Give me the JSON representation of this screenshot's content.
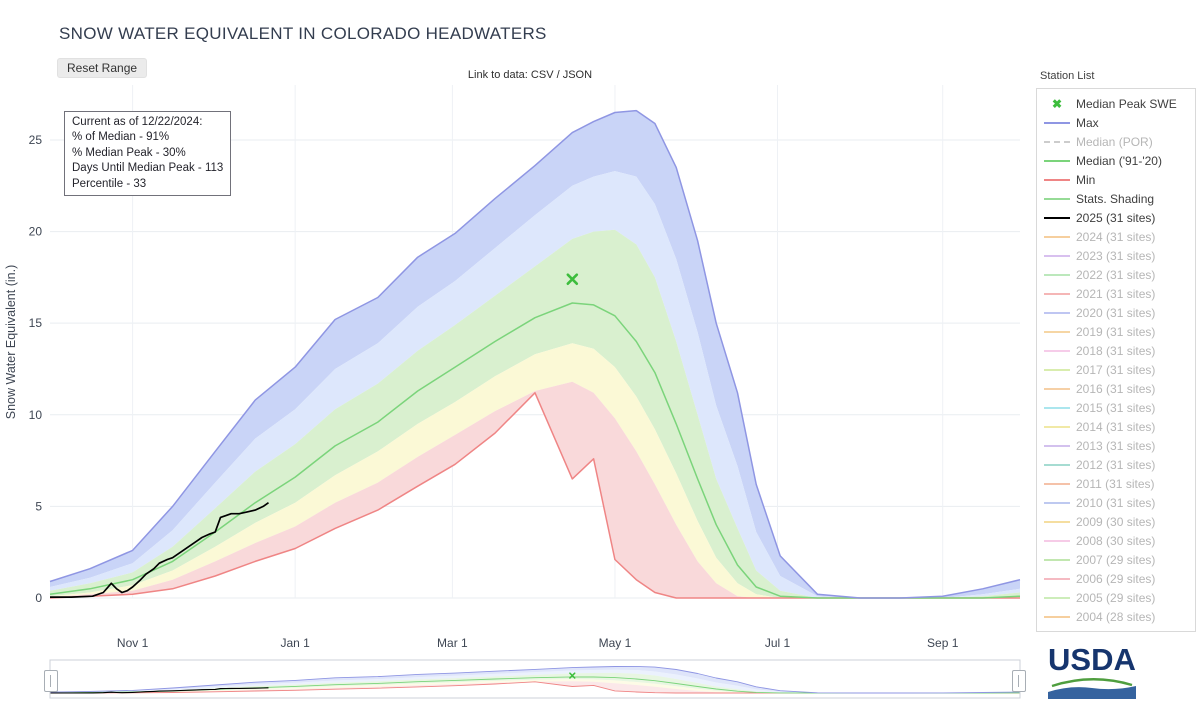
{
  "header": {
    "title": "SNOW WATER EQUIVALENT IN COLORADO HEADWATERS",
    "reset_range_label": "Reset Range",
    "data_link_prefix": "Link to data:",
    "csv_label": "CSV",
    "link_separator": " / ",
    "json_label": "JSON",
    "station_list_label": "Station List"
  },
  "annotation": {
    "lines": [
      "Current as of 12/22/2024:",
      "% of Median - 91%",
      "% Median Peak - 30%",
      "Days Until Median Peak - 113",
      "Percentile - 33"
    ]
  },
  "legend": {
    "items": [
      {
        "label": "Median Peak SWE",
        "style": "marker-x",
        "color": "#3dbd3d",
        "active": true
      },
      {
        "label": "Max",
        "style": "line",
        "color": "#8f96e3",
        "active": true
      },
      {
        "label": "Median (POR)",
        "style": "dash",
        "color": "#cccccc",
        "active": false
      },
      {
        "label": "Median ('91-'20)",
        "style": "line",
        "color": "#7bd47b",
        "active": true
      },
      {
        "label": "Min",
        "style": "line",
        "color": "#ef8585",
        "active": true
      },
      {
        "label": "Stats. Shading",
        "style": "line",
        "color": "#96db96",
        "active": true
      },
      {
        "label": "2025 (31 sites)",
        "style": "line",
        "color": "#000000",
        "active": true
      },
      {
        "label": "2024 (31 sites)",
        "style": "line",
        "color": "#f6cf9e",
        "active": false
      },
      {
        "label": "2023 (31 sites)",
        "style": "line",
        "color": "#d8c0ef",
        "active": false
      },
      {
        "label": "2022 (31 sites)",
        "style": "line",
        "color": "#bce8bc",
        "active": false
      },
      {
        "label": "2021 (31 sites)",
        "style": "line",
        "color": "#f5b6b6",
        "active": false
      },
      {
        "label": "2020 (31 sites)",
        "style": "line",
        "color": "#bfc6f2",
        "active": false
      },
      {
        "label": "2019 (31 sites)",
        "style": "line",
        "color": "#f6d6a4",
        "active": false
      },
      {
        "label": "2018 (31 sites)",
        "style": "line",
        "color": "#f6cce9",
        "active": false
      },
      {
        "label": "2017 (31 sites)",
        "style": "line",
        "color": "#d9edae",
        "active": false
      },
      {
        "label": "2016 (31 sites)",
        "style": "line",
        "color": "#f6d0a6",
        "active": false
      },
      {
        "label": "2015 (31 sites)",
        "style": "line",
        "color": "#abe6ee",
        "active": false
      },
      {
        "label": "2014 (31 sites)",
        "style": "line",
        "color": "#f1e9a6",
        "active": false
      },
      {
        "label": "2013 (31 sites)",
        "style": "line",
        "color": "#d3c1ee",
        "active": false
      },
      {
        "label": "2012 (31 sites)",
        "style": "line",
        "color": "#a6dcd2",
        "active": false
      },
      {
        "label": "2011 (31 sites)",
        "style": "line",
        "color": "#f5c2a9",
        "active": false
      },
      {
        "label": "2010 (31 sites)",
        "style": "line",
        "color": "#bec9f0",
        "active": false
      },
      {
        "label": "2009 (30 sites)",
        "style": "line",
        "color": "#f5dea0",
        "active": false
      },
      {
        "label": "2008 (30 sites)",
        "style": "line",
        "color": "#f6cbe7",
        "active": false
      },
      {
        "label": "2007 (29 sites)",
        "style": "line",
        "color": "#c2e7b0",
        "active": false
      },
      {
        "label": "2006 (29 sites)",
        "style": "line",
        "color": "#f5bac2",
        "active": false
      },
      {
        "label": "2005 (29 sites)",
        "style": "line",
        "color": "#cdedba",
        "active": false
      },
      {
        "label": "2004 (28 sites)",
        "style": "line",
        "color": "#f6cf9e",
        "active": false
      }
    ]
  },
  "usda": {
    "label": "USDA"
  },
  "chart_data": {
    "type": "line",
    "title": "SNOW WATER EQUIVALENT IN COLORADO HEADWATERS",
    "xlabel": "",
    "ylabel": "Snow Water Equivalent (in.)",
    "ylim": [
      0,
      28
    ],
    "yticks": [
      0,
      5,
      10,
      15,
      20,
      25
    ],
    "xticks": [
      {
        "day": 31,
        "label": "Nov 1"
      },
      {
        "day": 92,
        "label": "Jan 1"
      },
      {
        "day": 151,
        "label": "Mar 1"
      },
      {
        "day": 212,
        "label": "May 1"
      },
      {
        "day": 273,
        "label": "Jul 1"
      },
      {
        "day": 335,
        "label": "Sep 1"
      }
    ],
    "x_unit": "days since Oct 1 (water year)",
    "x_days": [
      0,
      15,
      31,
      46,
      62,
      77,
      92,
      107,
      123,
      138,
      152,
      167,
      182,
      196,
      204,
      212,
      220,
      227,
      235,
      243,
      250,
      258,
      265,
      274,
      288,
      304,
      319,
      335,
      350,
      364
    ],
    "series": [
      {
        "name": "Max",
        "color": "#8f96e3",
        "values": [
          0.9,
          1.6,
          2.6,
          5.0,
          8.0,
          10.8,
          12.6,
          15.2,
          16.4,
          18.6,
          19.9,
          21.8,
          23.6,
          25.4,
          26.0,
          26.5,
          26.6,
          25.9,
          23.5,
          19.5,
          15.0,
          11.2,
          6.2,
          2.3,
          0.2,
          0,
          0,
          0.1,
          0.5,
          1.0
        ]
      },
      {
        "name": "Median ('91-'20)",
        "color": "#7bd47b",
        "values": [
          0.2,
          0.5,
          1.0,
          2.0,
          3.6,
          5.2,
          6.6,
          8.3,
          9.6,
          11.3,
          12.6,
          14.0,
          15.3,
          16.1,
          16.0,
          15.4,
          14.0,
          12.3,
          9.5,
          6.5,
          4.0,
          1.8,
          0.6,
          0.1,
          0,
          0,
          0,
          0,
          0,
          0.1
        ]
      },
      {
        "name": "Min",
        "color": "#ef8585",
        "values": [
          0,
          0.1,
          0.2,
          0.5,
          1.2,
          2.0,
          2.7,
          3.8,
          4.8,
          6.1,
          7.3,
          9.0,
          11.2,
          6.5,
          7.6,
          2.1,
          1.0,
          0.3,
          0,
          0,
          0,
          0,
          0,
          0,
          0,
          0,
          0,
          0,
          0,
          0
        ]
      }
    ],
    "shading_percentiles": [
      {
        "name": "p90",
        "values": [
          0.6,
          1.1,
          1.9,
          3.7,
          6.3,
          8.7,
          10.3,
          12.5,
          13.9,
          15.9,
          17.3,
          19.1,
          20.9,
          22.5,
          23.0,
          23.3,
          23.0,
          21.5,
          18.5,
          14.5,
          10.5,
          7.2,
          3.6,
          1.2,
          0.1,
          0,
          0,
          0,
          0.2,
          0.5
        ]
      },
      {
        "name": "p70",
        "values": [
          0.4,
          0.8,
          1.4,
          2.8,
          4.9,
          6.9,
          8.4,
          10.3,
          11.7,
          13.5,
          14.9,
          16.5,
          18.1,
          19.6,
          20.0,
          20.1,
          19.3,
          17.5,
          14.0,
          10.0,
          6.5,
          3.8,
          1.5,
          0.4,
          0,
          0,
          0,
          0,
          0.1,
          0.3
        ]
      },
      {
        "name": "p30",
        "values": [
          0.1,
          0.3,
          0.7,
          1.5,
          2.8,
          4.1,
          5.2,
          6.7,
          8.0,
          9.5,
          10.7,
          12.1,
          13.3,
          13.9,
          13.6,
          12.6,
          11.0,
          9.2,
          6.8,
          4.2,
          2.2,
          0.8,
          0.2,
          0,
          0,
          0,
          0,
          0,
          0,
          0
        ]
      },
      {
        "name": "p10",
        "values": [
          0.05,
          0.2,
          0.4,
          1.0,
          2.0,
          3.0,
          3.9,
          5.2,
          6.3,
          7.7,
          8.9,
          10.2,
          11.3,
          11.8,
          11.2,
          9.8,
          8.0,
          6.2,
          4.0,
          2.0,
          0.8,
          0.1,
          0,
          0,
          0,
          0,
          0,
          0,
          0,
          0
        ]
      }
    ],
    "bands": [
      {
        "upper": "Max",
        "lower": "p90",
        "fill": "#c9d4f7"
      },
      {
        "upper": "p90",
        "lower": "p70",
        "fill": "#dde7fc"
      },
      {
        "upper": "p70",
        "lower": "p30",
        "fill": "#d9f0cf"
      },
      {
        "upper": "p30",
        "lower": "p10",
        "fill": "#fbf9d6"
      },
      {
        "upper": "p10",
        "lower": "Min",
        "fill": "#f9d9da"
      }
    ],
    "current_year": {
      "name": "2025 (31 sites)",
      "color": "#000000",
      "days": [
        0,
        8,
        16,
        20,
        23,
        25,
        27,
        29,
        31,
        34,
        36,
        39,
        41,
        44,
        46,
        49,
        52,
        55,
        57,
        60,
        62,
        64,
        66,
        68,
        71,
        74,
        77,
        80,
        82
      ],
      "values": [
        0.05,
        0.05,
        0.1,
        0.3,
        0.8,
        0.5,
        0.3,
        0.4,
        0.6,
        1.0,
        1.3,
        1.6,
        1.9,
        2.1,
        2.2,
        2.5,
        2.8,
        3.1,
        3.3,
        3.5,
        3.6,
        4.4,
        4.5,
        4.6,
        4.6,
        4.7,
        4.8,
        5.0,
        5.2
      ]
    },
    "median_peak": {
      "label": "Median Peak SWE",
      "day": 196,
      "value": 17.4,
      "color": "#3dbd3d"
    },
    "grid": true,
    "legend_position": "right",
    "rangeslider": true
  }
}
